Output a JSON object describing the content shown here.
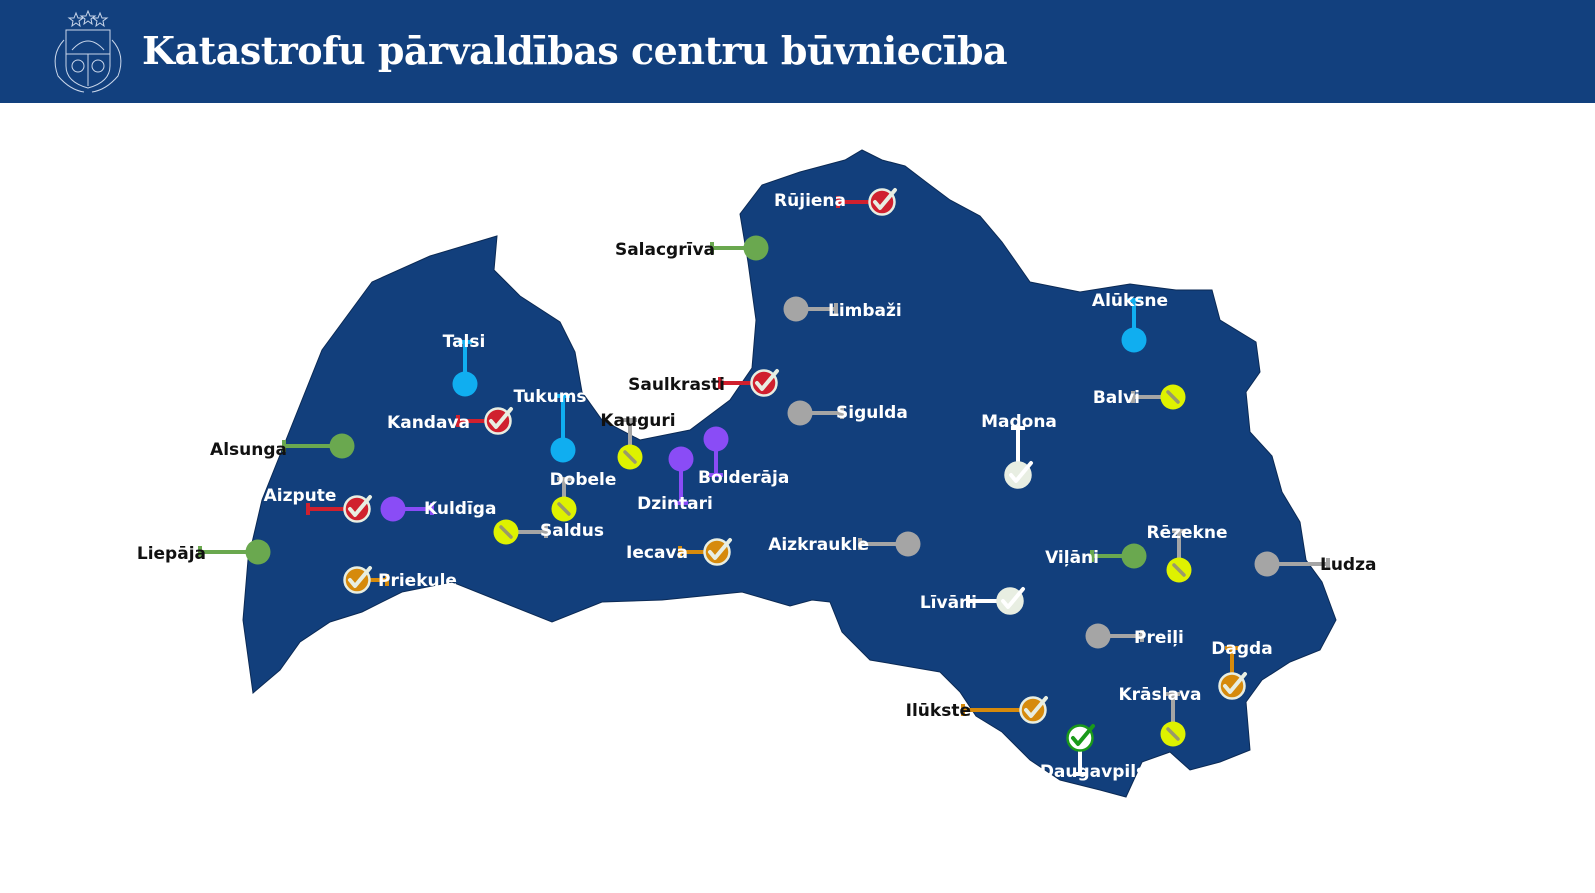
{
  "header": {
    "title": "Katastrofu pārvaldības centru būvniecība",
    "emblem": "coat-of-arms-of-latvia"
  },
  "colors": {
    "header": "#12407e",
    "map": "#123f7c",
    "red": "#d0202e",
    "orange": "#d68a0c",
    "white": "#e8eee2",
    "yellow": "#def200",
    "gray": "#a5a5a5",
    "green": "#6aa84f",
    "blue": "#10aef0",
    "purple": "#8a4cf6",
    "darkgreen": "#1a9a1a"
  },
  "locations": [
    {
      "name": "Rūjiena",
      "status": "red",
      "icon": "check"
    },
    {
      "name": "Salacgrīva",
      "status": "green",
      "icon": "none"
    },
    {
      "name": "Limbaži",
      "status": "gray",
      "icon": "none"
    },
    {
      "name": "Alūksne",
      "status": "blue",
      "icon": "none"
    },
    {
      "name": "Talsi",
      "status": "blue",
      "icon": "none"
    },
    {
      "name": "Saulkrasti",
      "status": "red",
      "icon": "check"
    },
    {
      "name": "Balvi",
      "status": "yellow",
      "icon": "pencil"
    },
    {
      "name": "Tukums",
      "status": "blue",
      "icon": "none"
    },
    {
      "name": "Kandava",
      "status": "red",
      "icon": "check"
    },
    {
      "name": "Sigulda",
      "status": "gray",
      "icon": "none"
    },
    {
      "name": "Kauguri",
      "status": "yellow",
      "icon": "pencil"
    },
    {
      "name": "Madona",
      "status": "white",
      "icon": "check"
    },
    {
      "name": "Alsunga",
      "status": "green",
      "icon": "none"
    },
    {
      "name": "Bolderāja",
      "status": "purple",
      "icon": "none"
    },
    {
      "name": "Dzintari",
      "status": "purple",
      "icon": "none"
    },
    {
      "name": "Dobele",
      "status": "yellow",
      "icon": "pencil"
    },
    {
      "name": "Aizpute",
      "status": "red",
      "icon": "check"
    },
    {
      "name": "Kuldīga",
      "status": "purple",
      "icon": "none"
    },
    {
      "name": "Saldus",
      "status": "yellow",
      "icon": "pencil"
    },
    {
      "name": "Liepāja",
      "status": "green",
      "icon": "none"
    },
    {
      "name": "Iecava",
      "status": "orange",
      "icon": "check"
    },
    {
      "name": "Aizkraukle",
      "status": "gray",
      "icon": "none"
    },
    {
      "name": "Viļāni",
      "status": "green",
      "icon": "none"
    },
    {
      "name": "Rēzekne",
      "status": "yellow",
      "icon": "pencil"
    },
    {
      "name": "Ludza",
      "status": "gray",
      "icon": "none"
    },
    {
      "name": "Priekule",
      "status": "orange",
      "icon": "check"
    },
    {
      "name": "Līvāni",
      "status": "white",
      "icon": "check"
    },
    {
      "name": "Preiļi",
      "status": "gray",
      "icon": "none"
    },
    {
      "name": "Dagda",
      "status": "orange",
      "icon": "check"
    },
    {
      "name": "Krāslava",
      "status": "yellow",
      "icon": "pencil"
    },
    {
      "name": "Ilūkste",
      "status": "orange",
      "icon": "check"
    },
    {
      "name": "Daugavpils",
      "status": "darkgreen",
      "icon": "check"
    }
  ]
}
